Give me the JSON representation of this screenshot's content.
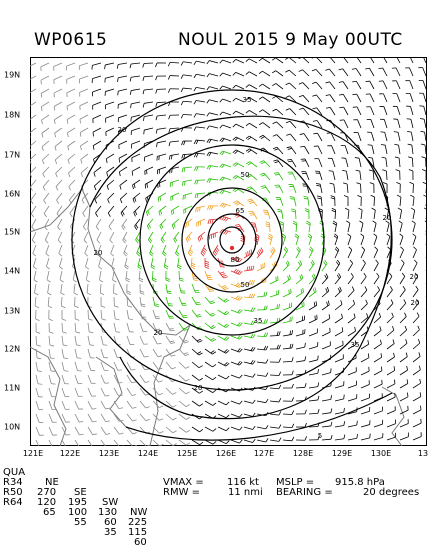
{
  "header": {
    "storm_id": "WP0615",
    "storm_name": "NOUL",
    "year": "2015",
    "datetime": "9 May 00UTC"
  },
  "map": {
    "lat_labels": [
      "19N",
      "18N",
      "17N",
      "16N",
      "15N",
      "14N",
      "13N",
      "12N",
      "11N",
      "10N"
    ],
    "lon_labels": [
      "121E",
      "122E",
      "123E",
      "124E",
      "125E",
      "126E",
      "127E",
      "128E",
      "129E",
      "130E",
      "13"
    ],
    "contour_labels": [
      "35",
      "20",
      "50",
      "65",
      "80",
      "50",
      "35",
      "20",
      "20",
      "20",
      "20",
      "35",
      "20",
      "20",
      "5"
    ],
    "colors": {
      "land_barbs": "#8a8a8a",
      "barbs_low": "#000000",
      "barbs_34kt": "#22c000",
      "barbs_50kt": "#f0a020",
      "barbs_64kt": "#e03030",
      "contours": "#000000"
    }
  },
  "wind_radii": {
    "headers": [
      "QUA",
      "NE",
      "SE",
      "SW",
      "NW"
    ],
    "rows": [
      [
        "R34",
        "270",
        "195",
        "130",
        "225"
      ],
      [
        "R50",
        "120",
        "100",
        "60",
        "115"
      ],
      [
        "R64",
        "65",
        "55",
        "35",
        "60"
      ]
    ]
  },
  "storm_info": {
    "vmax_label": "VMAX =",
    "vmax_value": "116 kt",
    "mslp_label": "MSLP =",
    "mslp_value": "915.8 hPa",
    "rmw_label": "RMW =",
    "rmw_value": "11 nmi",
    "bearing_label": "BEARING =",
    "bearing_value": "20 degrees"
  }
}
